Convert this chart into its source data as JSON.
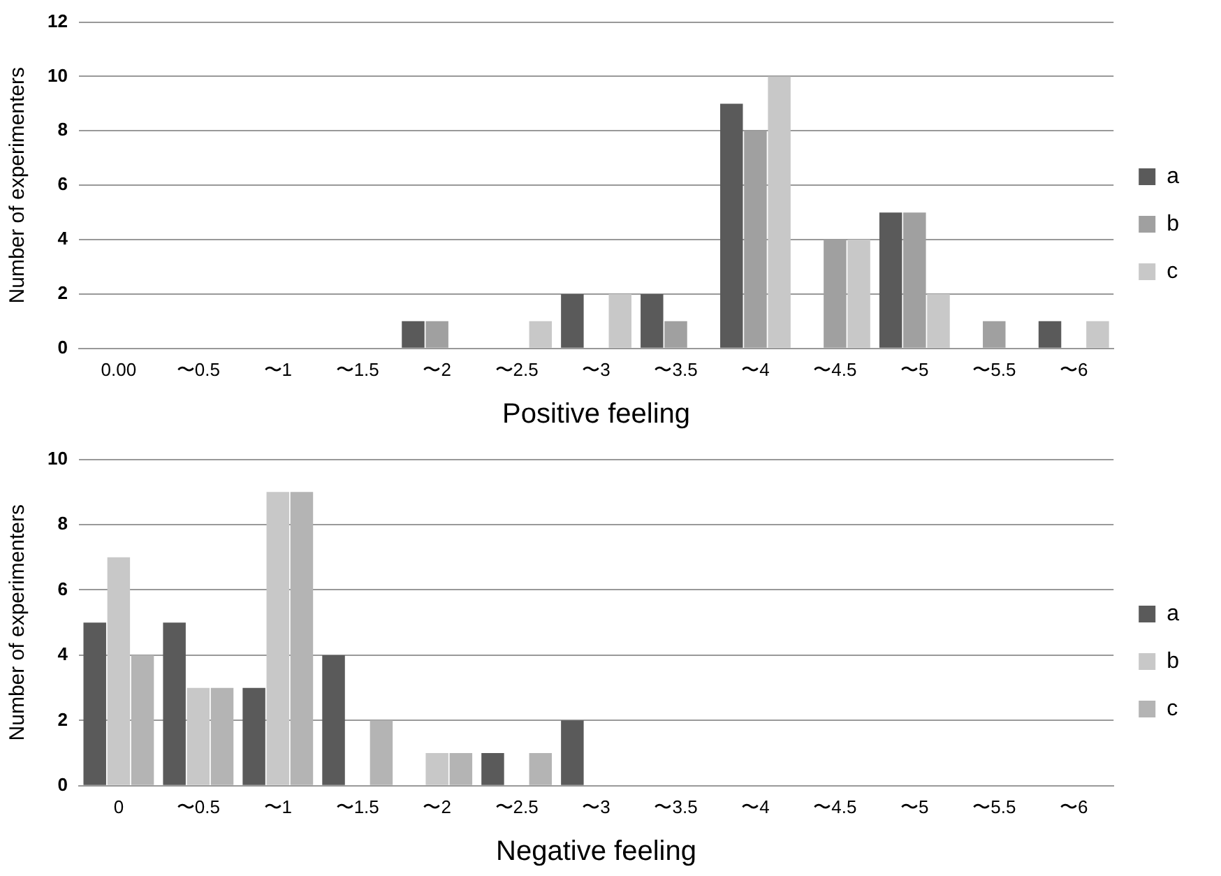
{
  "chart_data": [
    {
      "type": "bar",
      "xlabel": "Positive feeling",
      "ylabel": "Number of experimenters",
      "categories": [
        "0.00",
        "〜0.5",
        "〜1",
        "〜1.5",
        "〜2",
        "〜2.5",
        "〜3",
        "〜3.5",
        "〜4",
        "〜4.5",
        "〜5",
        "〜5.5",
        "〜6"
      ],
      "series": [
        {
          "name": "a",
          "color": "#5a5a5a",
          "values": [
            0,
            0,
            0,
            0,
            1,
            0,
            2,
            2,
            9,
            0,
            5,
            0,
            1
          ]
        },
        {
          "name": "b",
          "color": "#a0a0a0",
          "values": [
            0,
            0,
            0,
            0,
            1,
            0,
            0,
            1,
            8,
            4,
            5,
            1,
            0
          ]
        },
        {
          "name": "c",
          "color": "#c8c8c8",
          "values": [
            0,
            0,
            0,
            0,
            0,
            1,
            2,
            0,
            10,
            4,
            2,
            0,
            1
          ]
        }
      ],
      "ylim": [
        0,
        12
      ],
      "yticks": [
        0,
        2,
        4,
        6,
        8,
        10,
        12
      ],
      "grid": "y",
      "legend": "right"
    },
    {
      "type": "bar",
      "xlabel": "Negative feeling",
      "ylabel": "Number of experimenters",
      "categories": [
        "0",
        "〜0.5",
        "〜1",
        "〜1.5",
        "〜2",
        "〜2.5",
        "〜3",
        "〜3.5",
        "〜4",
        "〜4.5",
        "〜5",
        "〜5.5",
        "〜6"
      ],
      "series": [
        {
          "name": "a",
          "color": "#5a5a5a",
          "values": [
            5,
            5,
            3,
            4,
            0,
            1,
            2,
            0,
            0,
            0,
            0,
            0,
            0
          ]
        },
        {
          "name": "b",
          "color": "#c8c8c8",
          "values": [
            7,
            3,
            9,
            0,
            1,
            0,
            0,
            0,
            0,
            0,
            0,
            0,
            0
          ]
        },
        {
          "name": "c",
          "color": "#b4b4b4",
          "values": [
            4,
            3,
            9,
            2,
            1,
            1,
            0,
            0,
            0,
            0,
            0,
            0,
            0
          ]
        }
      ],
      "ylim": [
        0,
        10
      ],
      "yticks": [
        0,
        2,
        4,
        6,
        8,
        10
      ],
      "grid": "y",
      "legend": "right"
    }
  ]
}
